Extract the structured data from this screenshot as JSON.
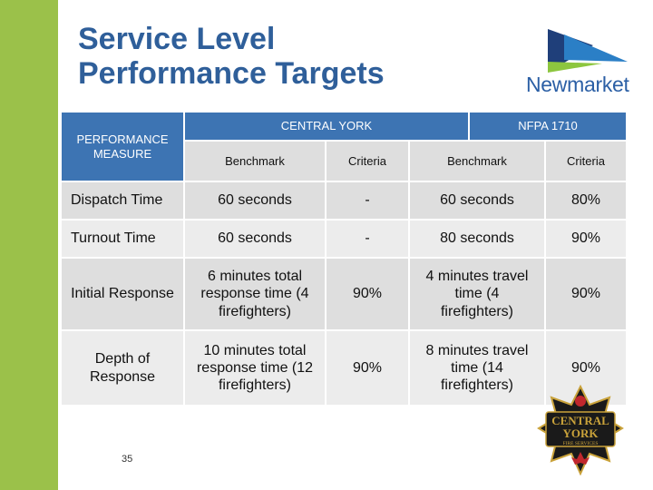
{
  "title": {
    "line1": "Service Level",
    "line2": "Performance Targets"
  },
  "logo": {
    "text": "Newmarket",
    "icon": "newmarket-logo-icon"
  },
  "table": {
    "measure_header": "PERFORMANCE MEASURE",
    "group_headers": [
      "CENTRAL YORK",
      "NFPA 1710"
    ],
    "sub_headers": [
      "Benchmark",
      "Criteria",
      "Benchmark",
      "Criteria"
    ],
    "rows": [
      {
        "measure": "Dispatch Time",
        "cy_benchmark": "60 seconds",
        "cy_criteria": "-",
        "nfpa_benchmark": "60 seconds",
        "nfpa_criteria": "80%"
      },
      {
        "measure": "Turnout Time",
        "cy_benchmark": "60 seconds",
        "cy_criteria": "-",
        "nfpa_benchmark": "80 seconds",
        "nfpa_criteria": "90%"
      },
      {
        "measure": "Initial Response",
        "cy_benchmark": "6 minutes total response time (4 firefighters)",
        "cy_criteria": "90%",
        "nfpa_benchmark": "4 minutes travel time (4 firefighters)",
        "nfpa_criteria": "90%"
      },
      {
        "measure": "Depth of Response",
        "cy_benchmark": "10 minutes total response time (12 firefighters)",
        "cy_criteria": "90%",
        "nfpa_benchmark": "8 minutes travel time (14 firefighters)",
        "nfpa_criteria": "90%"
      }
    ]
  },
  "page_number": "35",
  "badge": {
    "line1": "CENTRAL",
    "line2": "YORK",
    "line3": "FIRE SERVICES",
    "icon": "central-york-fire-badge-icon"
  },
  "colors": {
    "accent_green": "#9bc14a",
    "title_blue": "#2f5f9a",
    "header_blue": "#3d74b3",
    "cell_gray": "#dedede"
  }
}
